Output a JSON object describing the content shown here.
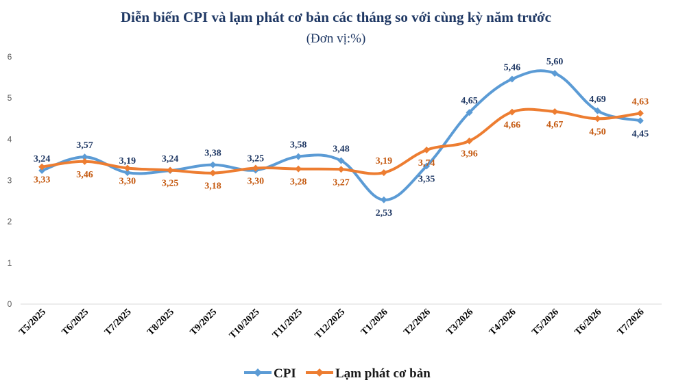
{
  "chart_data": {
    "type": "line",
    "title": "Diễn biến CPI và lạm phát cơ bản các tháng so với cùng kỳ năm trước",
    "subtitle": "(Đơn vị:%)",
    "categories": [
      "T5/2025",
      "T6/2025",
      "T7/2025",
      "T8/2025",
      "T9/2025",
      "T10/2025",
      "T11/2025",
      "T12/2025",
      "T1/2026",
      "T2/2026",
      "T3/2026",
      "T4/2026",
      "T5/2026",
      "T6/2026",
      "T7/2026"
    ],
    "series": [
      {
        "name": "CPI",
        "color": "#5b9bd5",
        "label_color": "#1f3864",
        "values": [
          3.24,
          3.57,
          3.19,
          3.24,
          3.38,
          3.25,
          3.58,
          3.48,
          2.53,
          3.35,
          4.65,
          5.46,
          5.6,
          4.69,
          4.45
        ],
        "labels": [
          "3,24",
          "3,57",
          "3,19",
          "3,24",
          "3,38",
          "3,25",
          "3,58",
          "3,48",
          "2,53",
          "3,35",
          "4,65",
          "5,46",
          "5,60",
          "4,69",
          "4,45"
        ],
        "label_pos": [
          "above",
          "above",
          "above",
          "above",
          "above",
          "above",
          "above",
          "above",
          "below",
          "below",
          "above",
          "above",
          "above",
          "above",
          "below"
        ]
      },
      {
        "name": "Lạm phát cơ bản",
        "color": "#ed7d31",
        "label_color": "#c55a11",
        "values": [
          3.33,
          3.46,
          3.3,
          3.25,
          3.18,
          3.3,
          3.28,
          3.27,
          3.19,
          3.74,
          3.96,
          4.66,
          4.67,
          4.5,
          4.63
        ],
        "labels": [
          "3,33",
          "3,46",
          "3,30",
          "3,25",
          "3,18",
          "3,30",
          "3,28",
          "3,27",
          "3,19",
          "3,74",
          "3,96",
          "4,66",
          "4,67",
          "4,50",
          "4,63"
        ],
        "label_pos": [
          "below",
          "below",
          "below",
          "below",
          "below",
          "below",
          "below",
          "below",
          "above",
          "below",
          "below",
          "below",
          "below",
          "below",
          "above"
        ]
      }
    ],
    "yticks": [
      "0",
      "1",
      "2",
      "3",
      "4",
      "5",
      "6"
    ],
    "ylim": [
      0,
      6
    ],
    "xlabel": "",
    "ylabel": "",
    "grid": false,
    "legend": "bottom"
  }
}
